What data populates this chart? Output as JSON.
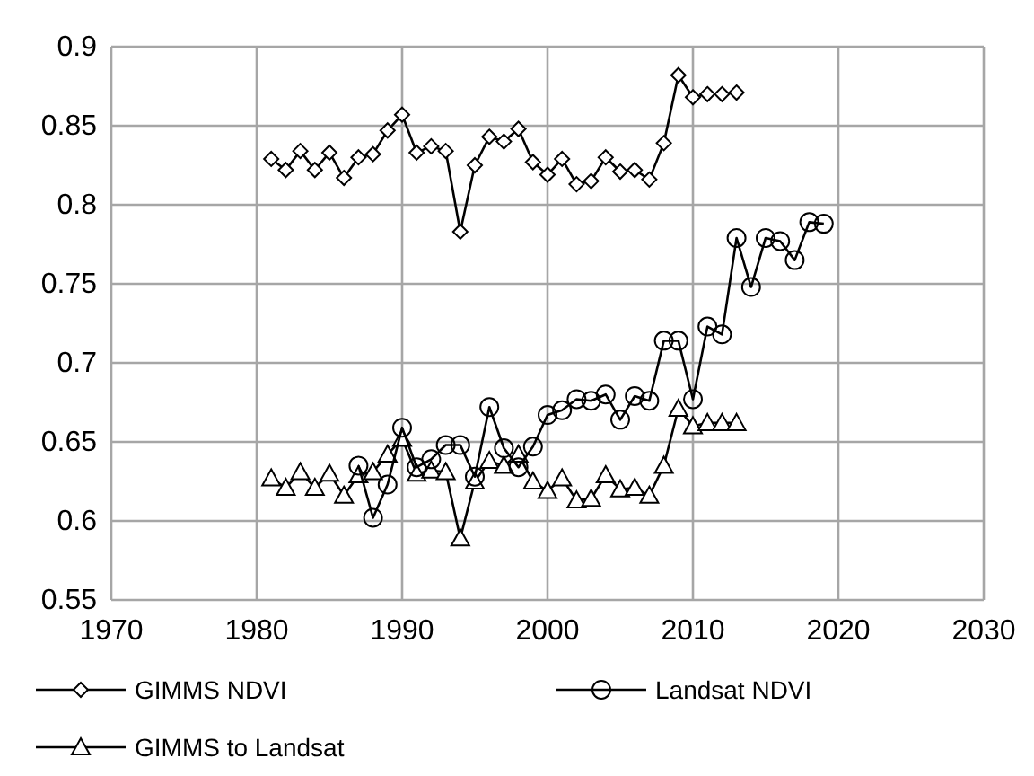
{
  "chart_data": {
    "type": "line",
    "xlim": [
      1970,
      2030
    ],
    "xticks": [
      1970,
      1980,
      1990,
      2000,
      2010,
      2020,
      2030
    ],
    "ylim": [
      0.55,
      0.9
    ],
    "yticks": [
      {
        "value": 0.55,
        "label": "0.55"
      },
      {
        "value": 0.6,
        "label": "0.6"
      },
      {
        "value": 0.65,
        "label": "0.65"
      },
      {
        "value": 0.7,
        "label": "0.7"
      },
      {
        "value": 0.75,
        "label": "0.75"
      },
      {
        "value": 0.8,
        "label": "0.8"
      },
      {
        "value": 0.85,
        "label": "0.85"
      },
      {
        "value": 0.9,
        "label": "0.9"
      }
    ],
    "grid": true,
    "legend": "bottom",
    "series": [
      {
        "name": "GIMMS NDVI",
        "color": "#000000",
        "marker": "diamond",
        "x": [
          1981,
          1982,
          1983,
          1984,
          1985,
          1986,
          1987,
          1988,
          1989,
          1990,
          1991,
          1992,
          1993,
          1994,
          1995,
          1996,
          1997,
          1998,
          1999,
          2000,
          2001,
          2002,
          2003,
          2004,
          2005,
          2006,
          2007,
          2008,
          2009,
          2010,
          2011,
          2012,
          2013
        ],
        "values": [
          0.829,
          0.822,
          0.834,
          0.822,
          0.833,
          0.817,
          0.83,
          0.832,
          0.847,
          0.857,
          0.833,
          0.837,
          0.834,
          0.783,
          0.825,
          0.843,
          0.84,
          0.848,
          0.827,
          0.819,
          0.829,
          0.813,
          0.815,
          0.83,
          0.821,
          0.822,
          0.816,
          0.839,
          0.882,
          0.868,
          0.87,
          0.87,
          0.871
        ]
      },
      {
        "name": "Landsat NDVI",
        "color": "#000000",
        "marker": "circle",
        "x": [
          1987,
          1988,
          1989,
          1990,
          1991,
          1992,
          1993,
          1994,
          1995,
          1996,
          1997,
          1998,
          1999,
          2000,
          2001,
          2002,
          2003,
          2004,
          2005,
          2006,
          2007,
          2008,
          2009,
          2010,
          2011,
          2012,
          2013,
          2014,
          2015,
          2016,
          2017,
          2018,
          2019
        ],
        "values": [
          0.635,
          0.602,
          0.623,
          0.659,
          0.634,
          0.639,
          0.648,
          0.648,
          0.628,
          0.672,
          0.646,
          0.634,
          0.647,
          0.667,
          0.67,
          0.677,
          0.676,
          0.68,
          0.664,
          0.679,
          0.676,
          0.714,
          0.714,
          0.677,
          0.723,
          0.718,
          0.779,
          0.748,
          0.779,
          0.777,
          0.765,
          0.789,
          0.788
        ]
      },
      {
        "name": "GIMMS to Landsat",
        "color": "#000000",
        "marker": "triangle",
        "x": [
          1981,
          1982,
          1983,
          1984,
          1985,
          1986,
          1987,
          1988,
          1989,
          1990,
          1991,
          1992,
          1993,
          1994,
          1995,
          1996,
          1997,
          1998,
          1999,
          2000,
          2001,
          2002,
          2003,
          2004,
          2005,
          2006,
          2007,
          2008,
          2009,
          2010,
          2011,
          2012,
          2013
        ],
        "values": [
          0.627,
          0.621,
          0.631,
          0.621,
          0.63,
          0.616,
          0.629,
          0.631,
          0.642,
          0.652,
          0.63,
          0.632,
          0.631,
          0.589,
          0.625,
          0.638,
          0.635,
          0.642,
          0.625,
          0.619,
          0.627,
          0.613,
          0.614,
          0.629,
          0.62,
          0.621,
          0.616,
          0.635,
          0.671,
          0.66,
          0.662,
          0.662,
          0.662
        ]
      }
    ]
  }
}
